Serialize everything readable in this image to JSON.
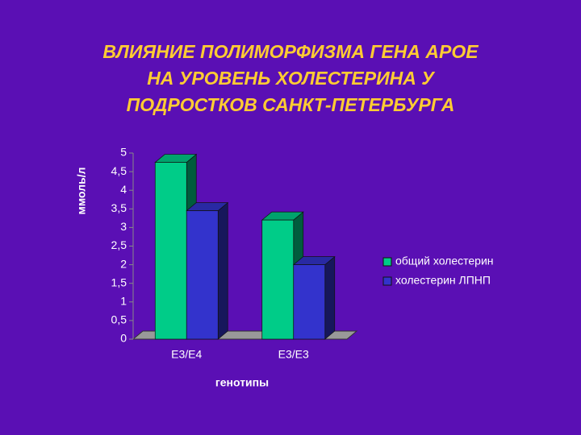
{
  "chart_data": {
    "type": "bar",
    "title": [
      "ВЛИЯНИЕ ПОЛИМОРФИЗМА ГЕНА АРОЕ",
      "НА УРОВЕНЬ ХОЛЕСТЕРИНА У",
      "ПОДРОСТКОВ САНКТ-ПЕТЕРБУРГА"
    ],
    "y_label": "ммоль/л",
    "x_label": "генотипы",
    "categories": [
      "E3/E4",
      "E3/E3"
    ],
    "series": [
      {
        "name": "общий холестерин",
        "color": "#00cc88",
        "values": [
          4.75,
          3.2
        ]
      },
      {
        "name": "холестерин ЛПНП",
        "color": "#3333cc",
        "values": [
          3.45,
          2.0
        ]
      }
    ],
    "ylim": [
      0,
      5
    ],
    "yticks": [
      0,
      {
        "value": 0.5,
        "label": "0,5"
      },
      1,
      {
        "value": 1.5,
        "label": "1,5"
      },
      2,
      {
        "value": 2.5,
        "label": "2,5"
      },
      3,
      {
        "value": 3.5,
        "label": "3,5"
      },
      4,
      {
        "value": 4.5,
        "label": "4,5"
      },
      5
    ],
    "legend": "right"
  }
}
